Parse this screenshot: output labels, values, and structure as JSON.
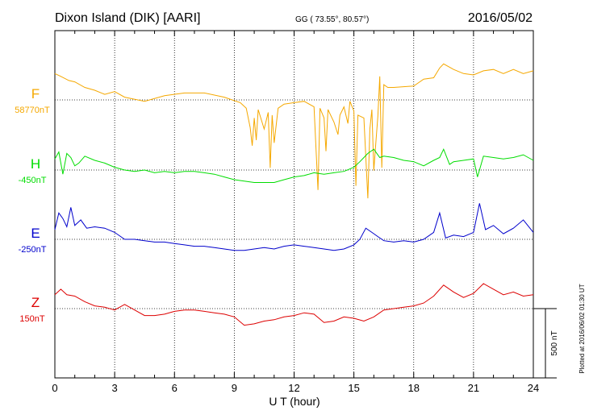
{
  "header": {
    "station": "Dixon Island (DIK)  [AARI]",
    "coords": "GG ( 73.55°,  80.57°)",
    "date": "2016/05/02"
  },
  "footer": {
    "plotted": "Plotted at 2016/06/02 01:30 UT"
  },
  "colors": {
    "F": "#f5a800",
    "H": "#00dd00",
    "E": "#0000cc",
    "Z": "#dd0000",
    "grid": "#000000"
  },
  "chart_data": {
    "type": "line",
    "title": "",
    "xlabel": "U T (hour)",
    "ylabel": "",
    "xlim": [
      0,
      24
    ],
    "x_ticks": [
      0,
      3,
      6,
      9,
      12,
      15,
      18,
      21,
      24
    ],
    "x_tick_labels": [
      "0",
      "3",
      "6",
      "9",
      "12",
      "15",
      "18",
      "21",
      "24"
    ],
    "scale_bar_label": "500 nT",
    "scale_bar_nT": 500,
    "grid": true,
    "series": [
      {
        "name": "F",
        "baseline_label": "58770nT",
        "color": "#f5a800",
        "points": [
          [
            0,
            58960
          ],
          [
            0.3,
            58940
          ],
          [
            0.7,
            58910
          ],
          [
            1.0,
            58900
          ],
          [
            1.5,
            58860
          ],
          [
            2.0,
            58840
          ],
          [
            2.5,
            58810
          ],
          [
            3.0,
            58830
          ],
          [
            3.5,
            58790
          ],
          [
            4.5,
            58760
          ],
          [
            5.5,
            58800
          ],
          [
            6.5,
            58820
          ],
          [
            7.5,
            58820
          ],
          [
            8.5,
            58790
          ],
          [
            9.3,
            58750
          ],
          [
            9.6,
            58710
          ],
          [
            9.8,
            58570
          ],
          [
            9.9,
            58440
          ],
          [
            10.0,
            58640
          ],
          [
            10.1,
            58480
          ],
          [
            10.2,
            58700
          ],
          [
            10.5,
            58560
          ],
          [
            10.7,
            58680
          ],
          [
            10.8,
            58280
          ],
          [
            10.9,
            58660
          ],
          [
            11.0,
            58460
          ],
          [
            11.2,
            58710
          ],
          [
            11.5,
            58740
          ],
          [
            12.0,
            58750
          ],
          [
            12.5,
            58760
          ],
          [
            13.0,
            58720
          ],
          [
            13.2,
            58120
          ],
          [
            13.3,
            58710
          ],
          [
            13.5,
            58640
          ],
          [
            13.6,
            58400
          ],
          [
            13.7,
            58700
          ],
          [
            14.0,
            58610
          ],
          [
            14.2,
            58520
          ],
          [
            14.3,
            58660
          ],
          [
            14.5,
            58720
          ],
          [
            14.7,
            58600
          ],
          [
            14.8,
            58760
          ],
          [
            15.0,
            58690
          ],
          [
            15.1,
            58150
          ],
          [
            15.2,
            58660
          ],
          [
            15.5,
            58640
          ],
          [
            15.7,
            58060
          ],
          [
            15.8,
            58560
          ],
          [
            15.9,
            58700
          ],
          [
            16.0,
            58260
          ],
          [
            16.1,
            58460
          ],
          [
            16.2,
            58650
          ],
          [
            16.3,
            58940
          ],
          [
            16.4,
            58280
          ],
          [
            16.5,
            58880
          ],
          [
            16.7,
            58860
          ],
          [
            17.0,
            58860
          ],
          [
            18.0,
            58870
          ],
          [
            18.5,
            58920
          ],
          [
            19.0,
            58930
          ],
          [
            19.3,
            59000
          ],
          [
            19.5,
            59030
          ],
          [
            20.0,
            58990
          ],
          [
            20.5,
            58960
          ],
          [
            21.0,
            58950
          ],
          [
            21.5,
            58980
          ],
          [
            22.0,
            58990
          ],
          [
            22.5,
            58960
          ],
          [
            23.0,
            58990
          ],
          [
            23.5,
            58960
          ],
          [
            24.0,
            58980
          ]
        ]
      },
      {
        "name": "H",
        "baseline_label": "-450nT",
        "color": "#00dd00",
        "points": [
          [
            0,
            -370
          ],
          [
            0.2,
            -320
          ],
          [
            0.4,
            -480
          ],
          [
            0.6,
            -330
          ],
          [
            0.8,
            -360
          ],
          [
            1.0,
            -420
          ],
          [
            1.2,
            -400
          ],
          [
            1.5,
            -350
          ],
          [
            2.0,
            -380
          ],
          [
            2.5,
            -400
          ],
          [
            3.0,
            -430
          ],
          [
            3.5,
            -450
          ],
          [
            4.0,
            -460
          ],
          [
            4.5,
            -450
          ],
          [
            5.0,
            -470
          ],
          [
            5.5,
            -460
          ],
          [
            6.0,
            -470
          ],
          [
            6.5,
            -460
          ],
          [
            7.0,
            -460
          ],
          [
            7.5,
            -470
          ],
          [
            8.0,
            -480
          ],
          [
            8.5,
            -500
          ],
          [
            9.0,
            -520
          ],
          [
            9.5,
            -530
          ],
          [
            10.0,
            -540
          ],
          [
            10.5,
            -540
          ],
          [
            11.0,
            -540
          ],
          [
            11.5,
            -520
          ],
          [
            12.0,
            -500
          ],
          [
            12.5,
            -490
          ],
          [
            13.0,
            -470
          ],
          [
            13.5,
            -480
          ],
          [
            14.0,
            -470
          ],
          [
            14.5,
            -460
          ],
          [
            15.0,
            -430
          ],
          [
            15.3,
            -390
          ],
          [
            15.5,
            -360
          ],
          [
            15.7,
            -330
          ],
          [
            16.0,
            -300
          ],
          [
            16.3,
            -360
          ],
          [
            16.5,
            -350
          ],
          [
            17.0,
            -360
          ],
          [
            17.5,
            -380
          ],
          [
            18.0,
            -390
          ],
          [
            18.5,
            -420
          ],
          [
            19.0,
            -380
          ],
          [
            19.3,
            -360
          ],
          [
            19.5,
            -300
          ],
          [
            19.8,
            -410
          ],
          [
            20.0,
            -390
          ],
          [
            20.5,
            -380
          ],
          [
            21.0,
            -370
          ],
          [
            21.2,
            -500
          ],
          [
            21.5,
            -350
          ],
          [
            22.0,
            -360
          ],
          [
            22.5,
            -370
          ],
          [
            23.0,
            -360
          ],
          [
            23.5,
            -340
          ],
          [
            24.0,
            -380
          ]
        ]
      },
      {
        "name": "E",
        "baseline_label": "-250nT",
        "color": "#0000cc",
        "points": [
          [
            0,
            -180
          ],
          [
            0.2,
            -60
          ],
          [
            0.4,
            -100
          ],
          [
            0.6,
            -160
          ],
          [
            0.8,
            -20
          ],
          [
            1.0,
            -150
          ],
          [
            1.3,
            -110
          ],
          [
            1.6,
            -170
          ],
          [
            2.0,
            -160
          ],
          [
            2.5,
            -170
          ],
          [
            3.0,
            -200
          ],
          [
            3.5,
            -250
          ],
          [
            4.0,
            -250
          ],
          [
            4.5,
            -260
          ],
          [
            5.0,
            -270
          ],
          [
            5.5,
            -270
          ],
          [
            6.0,
            -280
          ],
          [
            6.5,
            -290
          ],
          [
            7.0,
            -300
          ],
          [
            7.5,
            -300
          ],
          [
            8.0,
            -310
          ],
          [
            8.5,
            -320
          ],
          [
            9.0,
            -330
          ],
          [
            9.5,
            -330
          ],
          [
            10.0,
            -320
          ],
          [
            10.5,
            -310
          ],
          [
            11.0,
            -320
          ],
          [
            11.5,
            -300
          ],
          [
            12.0,
            -290
          ],
          [
            12.5,
            -300
          ],
          [
            13.0,
            -310
          ],
          [
            13.5,
            -320
          ],
          [
            14.0,
            -330
          ],
          [
            14.5,
            -320
          ],
          [
            15.0,
            -290
          ],
          [
            15.3,
            -250
          ],
          [
            15.6,
            -170
          ],
          [
            15.9,
            -200
          ],
          [
            16.2,
            -230
          ],
          [
            16.5,
            -260
          ],
          [
            17.0,
            -270
          ],
          [
            17.5,
            -260
          ],
          [
            18.0,
            -270
          ],
          [
            18.5,
            -250
          ],
          [
            19.0,
            -200
          ],
          [
            19.3,
            -60
          ],
          [
            19.6,
            -240
          ],
          [
            20.0,
            -220
          ],
          [
            20.5,
            -230
          ],
          [
            21.0,
            -200
          ],
          [
            21.3,
            10
          ],
          [
            21.6,
            -180
          ],
          [
            22.0,
            -150
          ],
          [
            22.5,
            -210
          ],
          [
            23.0,
            -170
          ],
          [
            23.5,
            -110
          ],
          [
            24.0,
            -200
          ]
        ]
      },
      {
        "name": "Z",
        "baseline_label": "150nT",
        "color": "#dd0000",
        "points": [
          [
            0,
            250
          ],
          [
            0.3,
            290
          ],
          [
            0.6,
            250
          ],
          [
            1.0,
            240
          ],
          [
            1.5,
            200
          ],
          [
            2.0,
            170
          ],
          [
            2.5,
            160
          ],
          [
            3.0,
            140
          ],
          [
            3.5,
            180
          ],
          [
            4.0,
            140
          ],
          [
            4.5,
            100
          ],
          [
            5.0,
            100
          ],
          [
            5.5,
            110
          ],
          [
            6.0,
            130
          ],
          [
            6.5,
            140
          ],
          [
            7.0,
            140
          ],
          [
            7.5,
            130
          ],
          [
            8.0,
            120
          ],
          [
            8.5,
            110
          ],
          [
            9.0,
            90
          ],
          [
            9.5,
            30
          ],
          [
            10.0,
            40
          ],
          [
            10.5,
            60
          ],
          [
            11.0,
            70
          ],
          [
            11.5,
            90
          ],
          [
            12.0,
            100
          ],
          [
            12.5,
            120
          ],
          [
            13.0,
            110
          ],
          [
            13.5,
            50
          ],
          [
            14.0,
            60
          ],
          [
            14.5,
            90
          ],
          [
            15.0,
            80
          ],
          [
            15.5,
            60
          ],
          [
            16.0,
            90
          ],
          [
            16.5,
            140
          ],
          [
            17.0,
            150
          ],
          [
            17.5,
            160
          ],
          [
            18.0,
            170
          ],
          [
            18.5,
            190
          ],
          [
            19.0,
            240
          ],
          [
            19.5,
            320
          ],
          [
            20.0,
            270
          ],
          [
            20.5,
            230
          ],
          [
            21.0,
            260
          ],
          [
            21.5,
            330
          ],
          [
            22.0,
            290
          ],
          [
            22.5,
            250
          ],
          [
            23.0,
            270
          ],
          [
            23.5,
            240
          ],
          [
            24.0,
            250
          ]
        ]
      }
    ]
  }
}
